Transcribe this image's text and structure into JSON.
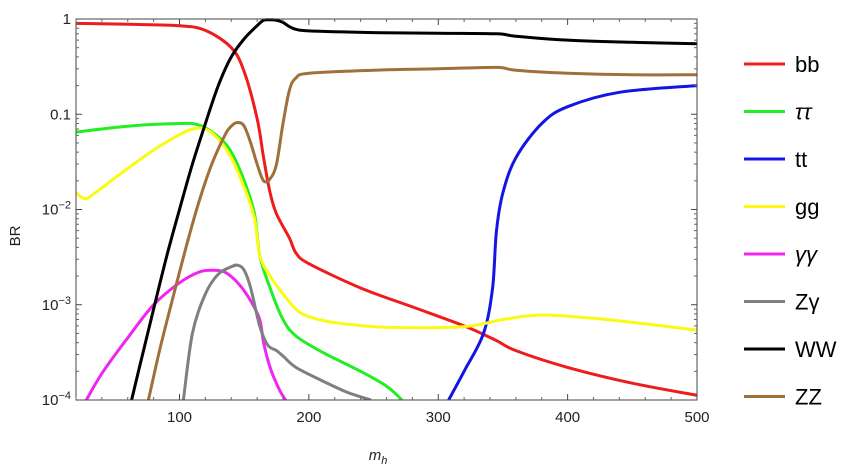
{
  "chart_data": {
    "type": "line",
    "title": "",
    "xlabel": "m",
    "xlabel_sub": "h",
    "ylabel": "BR",
    "xlim": [
      20,
      500
    ],
    "ylim": [
      0.0001,
      1
    ],
    "yscale": "log",
    "grid": false,
    "legend_position": "right",
    "x_ticks": [
      100,
      200,
      300,
      400,
      500
    ],
    "y_ticks": [
      {
        "value": 1,
        "label": "1"
      },
      {
        "value": 0.1,
        "label": "0.1"
      },
      {
        "value": 0.01,
        "mant": "10",
        "exp": "−2"
      },
      {
        "value": 0.001,
        "mant": "10",
        "exp": "−3"
      },
      {
        "value": 0.0001,
        "mant": "10",
        "exp": "−4"
      }
    ],
    "series": [
      {
        "name": "bb",
        "color": "#ee1c1c",
        "italic": false,
        "points": [
          [
            20,
            0.9
          ],
          [
            60,
            0.88
          ],
          [
            100,
            0.85
          ],
          [
            120,
            0.76
          ],
          [
            140,
            0.5
          ],
          [
            150,
            0.28
          ],
          [
            160,
            0.09
          ],
          [
            165,
            0.035
          ],
          [
            170,
            0.015
          ],
          [
            175,
            0.009
          ],
          [
            185,
            0.005
          ],
          [
            190,
            0.0035
          ],
          [
            200,
            0.0027
          ],
          [
            240,
            0.0015
          ],
          [
            280,
            0.00095
          ],
          [
            320,
            0.0006
          ],
          [
            345,
            0.00042
          ],
          [
            360,
            0.00033
          ],
          [
            400,
            0.00022
          ],
          [
            450,
            0.00015
          ],
          [
            500,
            0.000112
          ]
        ]
      },
      {
        "name": "ττ",
        "color": "#22ee22",
        "italic": true,
        "points": [
          [
            20,
            0.065
          ],
          [
            60,
            0.075
          ],
          [
            100,
            0.08
          ],
          [
            115,
            0.077
          ],
          [
            130,
            0.058
          ],
          [
            140,
            0.04
          ],
          [
            150,
            0.02
          ],
          [
            158,
            0.009
          ],
          [
            162,
            0.0033
          ],
          [
            170,
            0.0015
          ],
          [
            180,
            0.0007
          ],
          [
            190,
            0.00047
          ],
          [
            210,
            0.00032
          ],
          [
            240,
            0.0002
          ],
          [
            260,
            0.00014
          ],
          [
            272,
            0.0001
          ]
        ]
      },
      {
        "name": "tt",
        "color": "#1414e6",
        "italic": false,
        "points": [
          [
            308,
            0.0001
          ],
          [
            320,
            0.0002
          ],
          [
            335,
            0.0005
          ],
          [
            342,
            0.0015
          ],
          [
            345,
            0.006
          ],
          [
            350,
            0.015
          ],
          [
            360,
            0.035
          ],
          [
            380,
            0.08
          ],
          [
            400,
            0.12
          ],
          [
            440,
            0.17
          ],
          [
            500,
            0.2
          ]
        ]
      },
      {
        "name": "gg",
        "color": "#fafa14",
        "italic": false,
        "points": [
          [
            20,
            0.015
          ],
          [
            27,
            0.013
          ],
          [
            35,
            0.015
          ],
          [
            60,
            0.027
          ],
          [
            80,
            0.042
          ],
          [
            100,
            0.061
          ],
          [
            110,
            0.07
          ],
          [
            120,
            0.07
          ],
          [
            130,
            0.055
          ],
          [
            140,
            0.035
          ],
          [
            150,
            0.017
          ],
          [
            158,
            0.008
          ],
          [
            162,
            0.0033
          ],
          [
            170,
            0.002
          ],
          [
            180,
            0.0013
          ],
          [
            190,
            0.0009
          ],
          [
            200,
            0.00075
          ],
          [
            220,
            0.00065
          ],
          [
            260,
            0.00058
          ],
          [
            320,
            0.00059
          ],
          [
            350,
            0.0007
          ],
          [
            380,
            0.00078
          ],
          [
            420,
            0.00072
          ],
          [
            460,
            0.00063
          ],
          [
            500,
            0.00054
          ]
        ]
      },
      {
        "name": "γγ",
        "color": "#f026f0",
        "italic": true,
        "points": [
          [
            28,
            0.0001
          ],
          [
            40,
            0.00019
          ],
          [
            60,
            0.00045
          ],
          [
            80,
            0.001
          ],
          [
            100,
            0.0017
          ],
          [
            115,
            0.0022
          ],
          [
            125,
            0.0023
          ],
          [
            135,
            0.0022
          ],
          [
            145,
            0.0017
          ],
          [
            155,
            0.0011
          ],
          [
            162,
            0.0007
          ],
          [
            165,
            0.0004
          ],
          [
            170,
            0.00022
          ],
          [
            177,
            0.00013
          ],
          [
            182,
            0.0001
          ]
        ]
      },
      {
        "name": "Zγ",
        "color": "#7f7f7f",
        "italic": false,
        "points": [
          [
            103,
            0.0001
          ],
          [
            110,
            0.0005
          ],
          [
            120,
            0.0013
          ],
          [
            130,
            0.0021
          ],
          [
            140,
            0.0025
          ],
          [
            145,
            0.0026
          ],
          [
            150,
            0.0023
          ],
          [
            155,
            0.0015
          ],
          [
            162,
            0.0006
          ],
          [
            168,
            0.00038
          ],
          [
            175,
            0.00033
          ],
          [
            180,
            0.00029
          ],
          [
            190,
            0.00022
          ],
          [
            210,
            0.00016
          ],
          [
            230,
            0.00012
          ],
          [
            248,
            0.0001
          ]
        ]
      },
      {
        "name": "WW",
        "color": "#000000",
        "italic": false,
        "points": [
          [
            63,
            0.0001
          ],
          [
            70,
            0.00025
          ],
          [
            80,
            0.0009
          ],
          [
            90,
            0.0032
          ],
          [
            100,
            0.01
          ],
          [
            110,
            0.03
          ],
          [
            120,
            0.08
          ],
          [
            130,
            0.2
          ],
          [
            140,
            0.4
          ],
          [
            150,
            0.62
          ],
          [
            160,
            0.85
          ],
          [
            165,
            0.97
          ],
          [
            170,
            0.98
          ],
          [
            175,
            0.97
          ],
          [
            180,
            0.92
          ],
          [
            185,
            0.83
          ],
          [
            190,
            0.78
          ],
          [
            200,
            0.75
          ],
          [
            250,
            0.72
          ],
          [
            300,
            0.71
          ],
          [
            345,
            0.7
          ],
          [
            360,
            0.66
          ],
          [
            400,
            0.6
          ],
          [
            450,
            0.57
          ],
          [
            500,
            0.55
          ]
        ]
      },
      {
        "name": "ZZ",
        "color": "#a0703c",
        "italic": false,
        "points": [
          [
            76,
            0.0001
          ],
          [
            85,
            0.00035
          ],
          [
            95,
            0.0012
          ],
          [
            105,
            0.004
          ],
          [
            115,
            0.012
          ],
          [
            125,
            0.03
          ],
          [
            135,
            0.06
          ],
          [
            140,
            0.075
          ],
          [
            145,
            0.082
          ],
          [
            150,
            0.075
          ],
          [
            155,
            0.05
          ],
          [
            160,
            0.03
          ],
          [
            165,
            0.02
          ],
          [
            170,
            0.021
          ],
          [
            175,
            0.03
          ],
          [
            180,
            0.08
          ],
          [
            185,
            0.18
          ],
          [
            190,
            0.24
          ],
          [
            200,
            0.27
          ],
          [
            250,
            0.29
          ],
          [
            300,
            0.3
          ],
          [
            345,
            0.31
          ],
          [
            360,
            0.29
          ],
          [
            400,
            0.27
          ],
          [
            450,
            0.26
          ],
          [
            500,
            0.26
          ]
        ]
      }
    ]
  }
}
